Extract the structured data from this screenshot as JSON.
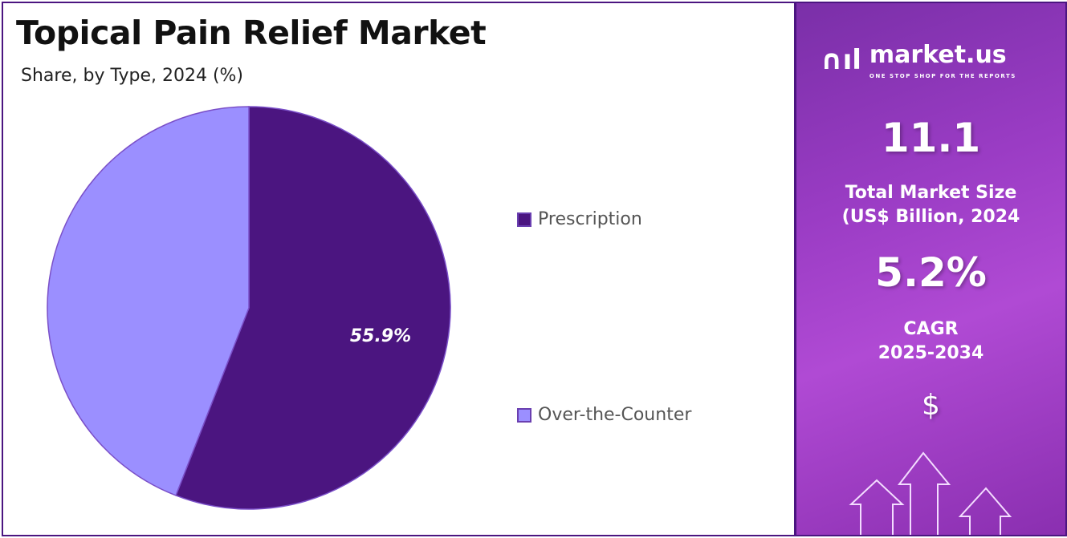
{
  "title": "Topical Pain Relief Market",
  "subtitle": "Share, by Type, 2024 (%)",
  "chart_data": {
    "type": "pie",
    "categories": [
      "Prescription",
      "Over-the-Counter"
    ],
    "values": [
      55.9,
      44.1
    ],
    "data_labels": [
      "55.9%",
      ""
    ],
    "colors": [
      "#4b1580",
      "#9b8fff"
    ],
    "legend": "right"
  },
  "sidebar": {
    "logo_name": "market.us",
    "logo_tagline": "ONE STOP SHOP FOR THE REPORTS",
    "market_size": "11.1",
    "market_size_label_1": "Total Market Size",
    "market_size_label_2": "(US$ Billion, 2024",
    "cagr": "5.2%",
    "cagr_label_1": "CAGR",
    "cagr_label_2": "2025-2034",
    "currency_symbol": "$"
  }
}
